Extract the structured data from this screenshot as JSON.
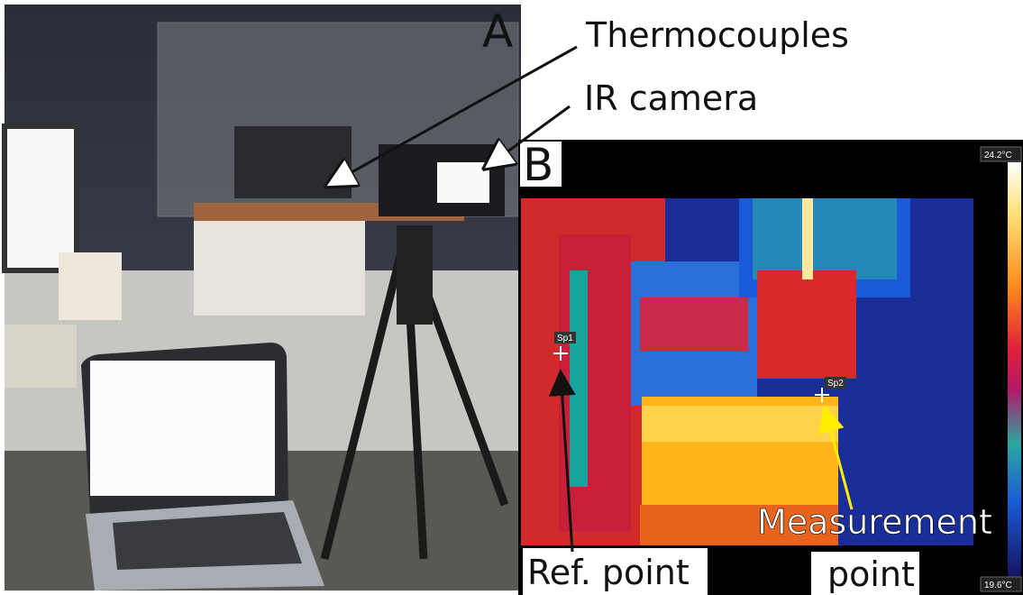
{
  "panel_a": {
    "label": "A",
    "callouts": [
      "Thermocouples",
      "IR camera"
    ]
  },
  "panel_b": {
    "label": "B",
    "scale_max": "24.2°C",
    "scale_min": "19.6°C",
    "spots": [
      "Sp1",
      "Sp2"
    ],
    "annotations": {
      "ref_point": "Ref. point",
      "measurement_point": [
        "Measurement",
        "point"
      ]
    }
  }
}
